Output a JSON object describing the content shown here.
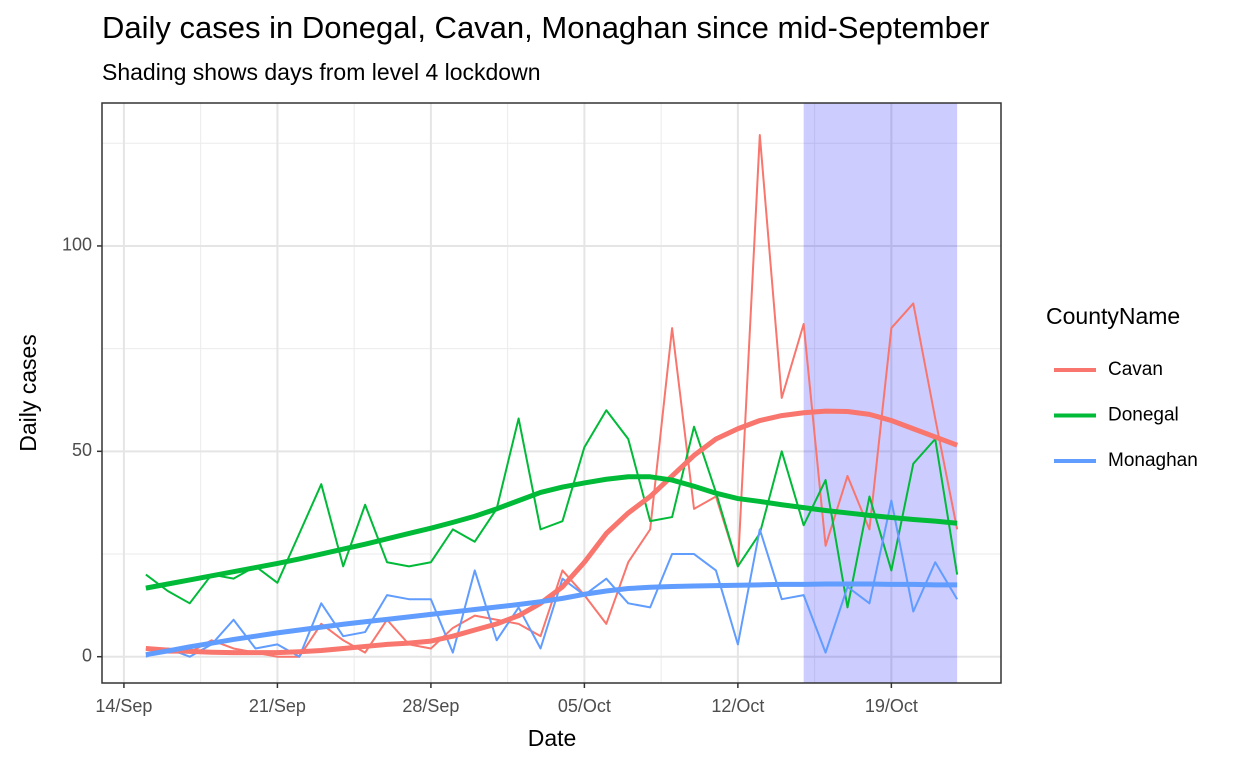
{
  "chart_data": {
    "type": "line",
    "title": "Daily cases in Donegal, Cavan, Monaghan since mid-September",
    "subtitle": "Shading shows days from level 4 lockdown",
    "x_label": "Date",
    "y_label": "Daily cases",
    "legend_title": "CountyName",
    "x": [
      "15/Sep",
      "16/Sep",
      "17/Sep",
      "18/Sep",
      "19/Sep",
      "20/Sep",
      "21/Sep",
      "22/Sep",
      "23/Sep",
      "24/Sep",
      "25/Sep",
      "26/Sep",
      "27/Sep",
      "28/Sep",
      "29/Sep",
      "30/Sep",
      "01/Oct",
      "02/Oct",
      "03/Oct",
      "04/Oct",
      "05/Oct",
      "06/Oct",
      "07/Oct",
      "08/Oct",
      "09/Oct",
      "10/Oct",
      "11/Oct",
      "12/Oct",
      "13/Oct",
      "14/Oct",
      "15/Oct",
      "16/Oct",
      "17/Oct",
      "18/Oct",
      "19/Oct",
      "20/Oct",
      "21/Oct",
      "22/Oct"
    ],
    "xlim": [
      "13/Sep",
      "24/Oct"
    ],
    "xticks": [
      "14/Sep",
      "21/Sep",
      "28/Sep",
      "05/Oct",
      "12/Oct",
      "19/Oct"
    ],
    "ylim": [
      -6.4,
      134.8
    ],
    "yticks": [
      0,
      50,
      100
    ],
    "y_minor_ticks": [
      25,
      75,
      125
    ],
    "grid": true,
    "shade": {
      "from": "15/Oct",
      "to": "22/Oct",
      "color": "rgba(0,0,255,0.2)"
    },
    "series": [
      {
        "name": "Cavan",
        "color": "#F8766D",
        "values": [
          2,
          1,
          1,
          4,
          2,
          1,
          0,
          0,
          8,
          4,
          1,
          9,
          3,
          2,
          7,
          10,
          9,
          8,
          5,
          21,
          15,
          8,
          23,
          31,
          80,
          36,
          39,
          22,
          127,
          63,
          81,
          27,
          44,
          31,
          80,
          86,
          58,
          31
        ],
        "smooth": [
          2,
          1.6,
          1.3,
          1.1,
          1,
          1,
          1,
          1.2,
          1.5,
          2,
          2.5,
          3,
          3.3,
          3.8,
          5,
          6.5,
          8,
          10,
          13,
          17,
          23,
          30,
          35,
          39,
          44,
          49,
          53,
          55.5,
          57.5,
          58.7,
          59.4,
          59.8,
          59.7,
          59,
          57.5,
          55.5,
          53.5,
          51.5
        ]
      },
      {
        "name": "Donegal",
        "color": "#00BA38",
        "values": [
          20,
          16,
          13,
          20,
          19,
          22,
          18,
          30,
          42,
          22,
          37,
          23,
          22,
          23,
          31,
          28,
          36,
          58,
          31,
          33,
          51,
          60,
          53,
          33,
          34,
          56,
          40,
          22,
          30,
          50,
          32,
          43,
          12,
          39,
          21,
          47,
          53,
          20
        ],
        "smooth": [
          16.7,
          17.7,
          18.7,
          19.7,
          20.7,
          21.7,
          22.7,
          23.8,
          25,
          26.2,
          27.4,
          28.7,
          30,
          31.3,
          32.7,
          34.2,
          36,
          38,
          40,
          41.3,
          42.3,
          43.2,
          43.8,
          43.8,
          43,
          41.5,
          39.8,
          38.5,
          37.8,
          37,
          36.3,
          35.6,
          35,
          34.4,
          33.9,
          33.4,
          33,
          32.5
        ]
      },
      {
        "name": "Monaghan",
        "color": "#619CFF",
        "values": [
          0,
          2,
          0,
          3,
          9,
          2,
          3,
          0,
          13,
          5,
          6,
          15,
          14,
          14,
          1,
          21,
          4,
          12,
          2,
          19,
          15,
          19,
          13,
          12,
          25,
          25,
          21,
          3,
          31,
          14,
          15,
          1,
          17,
          13,
          38,
          11,
          23,
          14
        ],
        "smooth": [
          0.5,
          1.4,
          2.4,
          3.3,
          4.2,
          5,
          5.8,
          6.5,
          7.2,
          7.9,
          8.5,
          9.1,
          9.7,
          10.3,
          10.9,
          11.5,
          12.1,
          12.7,
          13.4,
          14.2,
          15.2,
          16,
          16.6,
          16.9,
          17.1,
          17.2,
          17.3,
          17.4,
          17.5,
          17.6,
          17.6,
          17.7,
          17.7,
          17.7,
          17.6,
          17.6,
          17.5,
          17.5
        ]
      }
    ]
  }
}
